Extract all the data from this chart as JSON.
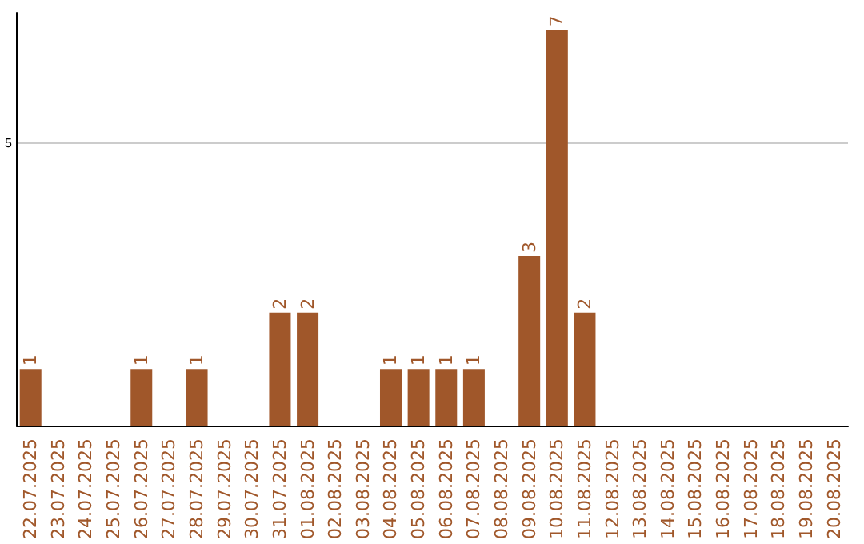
{
  "chart_data": {
    "type": "bar",
    "categories": [
      "22.07.2025",
      "23.07.2025",
      "24.07.2025",
      "25.07.2025",
      "26.07.2025",
      "27.07.2025",
      "28.07.2025",
      "29.07.2025",
      "30.07.2025",
      "31.07.2025",
      "01.08.2025",
      "02.08.2025",
      "03.08.2025",
      "04.08.2025",
      "05.08.2025",
      "06.08.2025",
      "07.08.2025",
      "08.08.2025",
      "09.08.2025",
      "10.08.2025",
      "11.08.2025",
      "12.08.2025",
      "13.08.2025",
      "14.08.2025",
      "15.08.2025",
      "16.08.2025",
      "17.08.2025",
      "18.08.2025",
      "19.08.2025",
      "20.08.2025"
    ],
    "values": [
      1,
      0,
      0,
      0,
      1,
      0,
      1,
      0,
      0,
      2,
      2,
      0,
      0,
      1,
      1,
      1,
      1,
      0,
      3,
      7,
      2,
      0,
      0,
      0,
      0,
      0,
      0,
      0,
      0,
      0
    ],
    "value_labels": [
      "1",
      null,
      null,
      null,
      "1",
      null,
      "1",
      null,
      null,
      "2",
      "2",
      null,
      null,
      "1",
      "1",
      "1",
      "1",
      null,
      "3",
      "7",
      "2",
      null,
      null,
      null,
      null,
      null,
      null,
      null,
      null,
      null
    ],
    "color": "#a0572a",
    "ylim": [
      0,
      7.3
    ],
    "yticks": [
      {
        "value": 0,
        "label": null
      },
      5
    ],
    "grid": "y"
  }
}
